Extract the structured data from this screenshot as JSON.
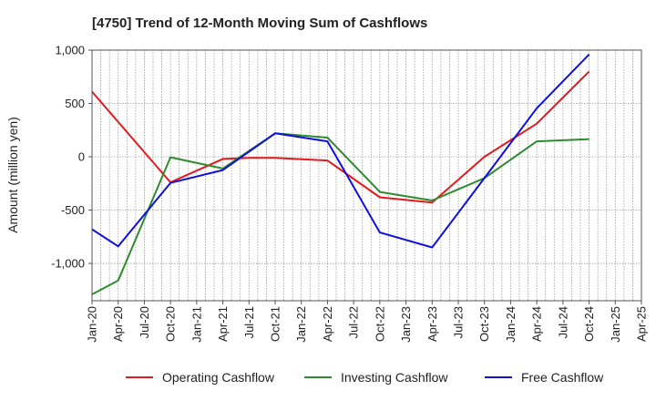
{
  "chart_data": {
    "type": "line",
    "title": "[4750]  Trend of 12-Month Moving Sum of Cashflows",
    "ylabel": "Amount (million yen)",
    "xlabel": "",
    "ylim": [
      -1350,
      1000
    ],
    "yticks": [
      1000,
      500,
      0,
      -500,
      -1000
    ],
    "ytick_labels": [
      "1,000",
      "500",
      "0",
      "-500",
      "-1,000"
    ],
    "categories": [
      "Jan-20",
      "Apr-20",
      "Jul-20",
      "Oct-20",
      "Jan-21",
      "Apr-21",
      "Jul-21",
      "Oct-21",
      "Jan-22",
      "Apr-22",
      "Jul-22",
      "Oct-22",
      "Jan-23",
      "Apr-23",
      "Jul-23",
      "Oct-23",
      "Jan-24",
      "Apr-24",
      "Jul-24",
      "Oct-24",
      "Jan-25",
      "Apr-25"
    ],
    "grid": true,
    "legend_position": "bottom",
    "series": [
      {
        "name": "Operating Cashflow",
        "color": "#e41a1c",
        "values": [
          610,
          null,
          null,
          -240,
          null,
          -20,
          -10,
          -10,
          null,
          -35,
          null,
          -380,
          null,
          -430,
          null,
          0,
          null,
          310,
          null,
          800,
          null,
          null
        ]
      },
      {
        "name": "Investing Cashflow",
        "color": "#2e8b2e",
        "values": [
          -1290,
          -1160,
          null,
          -5,
          null,
          -110,
          null,
          220,
          null,
          180,
          null,
          -330,
          null,
          -410,
          null,
          -200,
          null,
          145,
          null,
          165,
          null,
          null
        ]
      },
      {
        "name": "Free Cashflow",
        "color": "#1010dd",
        "values": [
          -680,
          -840,
          null,
          -245,
          null,
          -125,
          null,
          220,
          null,
          145,
          null,
          -710,
          null,
          -850,
          null,
          -200,
          null,
          455,
          null,
          960,
          null,
          null
        ]
      }
    ]
  }
}
